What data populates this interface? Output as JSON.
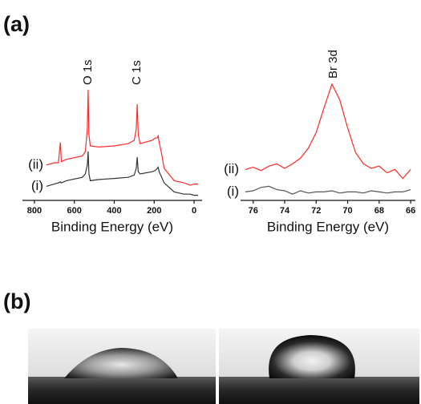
{
  "panel_labels": [
    "(a)",
    "(b)"
  ],
  "chart_data": [
    {
      "type": "line",
      "x_label": "Binding Energy (eV)",
      "x": [
        740,
        700,
        680,
        670,
        665,
        640,
        560,
        545,
        535,
        531,
        527,
        520,
        480,
        400,
        330,
        300,
        290,
        285,
        280,
        270,
        210,
        195,
        185,
        180,
        175,
        165,
        150,
        100,
        50,
        20,
        0,
        -20
      ],
      "xlim": [
        860,
        -40
      ],
      "xticks": [
        800,
        600,
        400,
        200,
        0
      ],
      "ylim": [
        0,
        100
      ],
      "series": [
        {
          "name": "(ii)",
          "color": "#ff2a2a",
          "values": [
            28,
            30,
            30,
            48,
            31,
            33,
            36,
            40,
            60,
            95,
            55,
            45,
            44,
            45,
            47,
            50,
            60,
            82,
            55,
            47,
            50,
            52,
            52,
            54,
            48,
            40,
            25,
            14,
            12,
            10,
            11,
            11
          ]
        },
        {
          "name": "(i)",
          "color": "#333333",
          "values": [
            9,
            11,
            12,
            13,
            12,
            14,
            17,
            20,
            28,
            40,
            20,
            14,
            15,
            16,
            17,
            19,
            25,
            35,
            22,
            20,
            22,
            23,
            25,
            26,
            22,
            18,
            12,
            4,
            2,
            2,
            1,
            1
          ]
        }
      ],
      "annotations": [
        {
          "text": "O 1s",
          "x": 531
        },
        {
          "text": "C 1s",
          "x": 285
        }
      ]
    },
    {
      "type": "line",
      "x_label": "Binding Energy (eV)",
      "x": [
        76.5,
        76,
        75.5,
        75,
        74.5,
        74,
        73.5,
        73,
        72.5,
        72,
        71.5,
        71,
        70.5,
        70,
        69.5,
        69,
        68.5,
        68,
        67.5,
        67,
        66.5,
        66
      ],
      "xlim": [
        76.8,
        65.7
      ],
      "xticks": [
        76,
        74,
        72,
        70,
        68,
        66
      ],
      "ylim": [
        0,
        100
      ],
      "series": [
        {
          "name": "(ii)",
          "color": "#ff2a2a",
          "values": [
            24,
            26,
            23,
            27,
            29,
            25,
            29,
            34,
            43,
            57,
            79,
            100,
            86,
            61,
            39,
            29,
            25,
            27,
            21,
            24,
            16,
            24
          ]
        },
        {
          "name": "(i)",
          "color": "#555555",
          "values": [
            4,
            5,
            8,
            9,
            6,
            5,
            2,
            5,
            3,
            4,
            4,
            5,
            3,
            4,
            4,
            3,
            5,
            4,
            3,
            4,
            4,
            6
          ]
        }
      ],
      "annotations": [
        {
          "text": "Br 3d",
          "x": 70.9
        }
      ]
    }
  ]
}
